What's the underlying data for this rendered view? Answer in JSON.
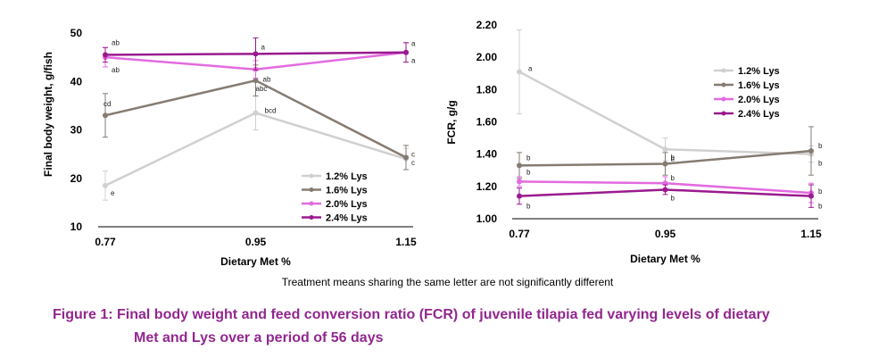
{
  "colors": {
    "1.2% Lys": "#d0d0d0",
    "1.6% Lys": "#857b71",
    "2.0% Lys": "#e36ae0",
    "2.4% Lys": "#9a1a8e",
    "caption": "#92278F"
  },
  "chart_data": [
    {
      "type": "line",
      "title": "",
      "xlabel": "Dietary Met %",
      "ylabel": "Final body weight, g/fish",
      "categories": [
        "0.77",
        "0.95",
        "1.15"
      ],
      "ylim": [
        10,
        50
      ],
      "yticks": [
        "10",
        "20",
        "30",
        "40",
        "50"
      ],
      "legend_position": "bottom-right",
      "series": [
        {
          "name": "1.2% Lys",
          "values": [
            18.5,
            33.5,
            24.0
          ],
          "errors": [
            3.0,
            3.5,
            2.2
          ],
          "labels": [
            "e",
            "bcd",
            "c"
          ]
        },
        {
          "name": "1.6% Lys",
          "values": [
            33.0,
            40.2,
            24.3
          ],
          "errors": [
            4.5,
            3.2,
            2.5
          ],
          "labels": [
            "cd",
            "abc",
            "c"
          ]
        },
        {
          "name": "2.0% Lys",
          "values": [
            45.0,
            42.5,
            46.0
          ],
          "errors": [
            2.0,
            1.8,
            2.0
          ],
          "labels": [
            "ab",
            "ab",
            "a"
          ]
        },
        {
          "name": "2.4% Lys",
          "values": [
            45.5,
            45.7,
            46.0
          ],
          "errors": [
            1.5,
            3.3,
            2.0
          ],
          "labels": [
            "ab",
            "a",
            "a"
          ]
        }
      ]
    },
    {
      "type": "line",
      "title": "",
      "xlabel": "Dietary Met %",
      "ylabel": "FCR, g/g",
      "categories": [
        "0.77",
        "0.95",
        "1.15"
      ],
      "ylim": [
        1.0,
        2.2
      ],
      "yticks": [
        "1.00",
        "1.20",
        "1.40",
        "1.60",
        "1.80",
        "2.00",
        "2.20"
      ],
      "legend_position": "top-right",
      "series": [
        {
          "name": "1.2% Lys",
          "values": [
            1.91,
            1.43,
            1.4
          ],
          "errors": [
            0.26,
            0.07,
            0.05
          ],
          "labels": [
            "a",
            "b",
            "b"
          ]
        },
        {
          "name": "1.6% Lys",
          "values": [
            1.33,
            1.34,
            1.42
          ],
          "errors": [
            0.08,
            0.07,
            0.15
          ],
          "labels": [
            "b",
            "b",
            "b"
          ]
        },
        {
          "name": "2.0% Lys",
          "values": [
            1.23,
            1.22,
            1.16
          ],
          "errors": [
            0.03,
            0.04,
            0.06
          ],
          "labels": [
            "b",
            "b",
            "b"
          ]
        },
        {
          "name": "2.4% Lys",
          "values": [
            1.14,
            1.18,
            1.14
          ],
          "errors": [
            0.05,
            0.03,
            0.07
          ],
          "labels": [
            "b",
            "b",
            "b"
          ]
        }
      ]
    }
  ],
  "note": "Treatment means sharing the same letter are not significantly different",
  "caption_line1": "Figure 1: Final body weight and feed conversion ratio (FCR) of juvenile tilapia fed varying levels of dietary",
  "caption_line2": "Met and Lys over a period of 56 days"
}
